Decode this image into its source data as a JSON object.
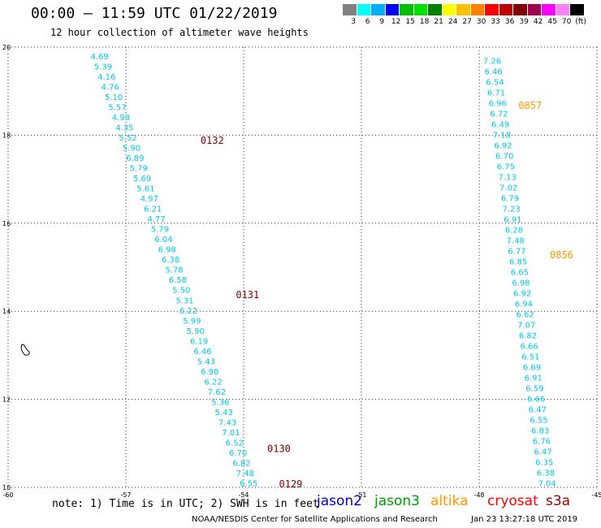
{
  "title": "00:00 – 11:59 UTC 01/22/2019",
  "subtitle": "12 hour collection of altimeter wave heights",
  "colorbar": {
    "colors": [
      "#808080",
      "#00ffff",
      "#00b0ff",
      "#0000ff",
      "#00c000",
      "#00e000",
      "#008000",
      "#ffff00",
      "#ffc000",
      "#ff8000",
      "#ff0000",
      "#c00000",
      "#800000",
      "#a00050",
      "#ff00ff",
      "#ff80ff",
      "#000000"
    ],
    "labels": [
      "3",
      "6",
      "9",
      "12",
      "15",
      "18",
      "21",
      "24",
      "27",
      "30",
      "33",
      "36",
      "39",
      "42",
      "45",
      "70",
      "(ft)"
    ]
  },
  "note": "note:  1) Time is in UTC;  2) SWH is in feet",
  "legend": [
    {
      "label": "jason2",
      "color": "#0000cc"
    },
    {
      "label": "jason3",
      "color": "#009900"
    },
    {
      "label": "altika",
      "color": "#ff9900"
    },
    {
      "label": "cryosat",
      "color": "#ff0000"
    },
    {
      "label": "s3a",
      "color": "#990000"
    }
  ],
  "credit": "NOAA/NESDIS Center for Satellite Applications and Research",
  "timestamp": "Jan 23 13:27:18 UTC 2019",
  "chart_data": {
    "type": "scatter",
    "x_ticks": [
      "-60",
      "-57",
      "-54",
      "-51",
      "-48",
      "-45"
    ],
    "y_ticks": [
      "10",
      "12",
      "14",
      "16",
      "18",
      "20"
    ],
    "xlim": [
      -60,
      -45
    ],
    "ylim": [
      10,
      20
    ],
    "grid": true,
    "tracks": [
      {
        "satellite": "jason3",
        "color": "#00c8e8",
        "lon_start": -57.9,
        "lat_start": 19.8,
        "lon_end": -54.1,
        "lat_end": 10.1,
        "values": [
          "4.69",
          "5.39",
          "4.16",
          "4.76",
          "5.10",
          "5.57",
          "4.98",
          "4.35",
          "5.52",
          "5.90",
          "6.89",
          "5.79",
          "5.69",
          "5.61",
          "4.97",
          "6.21",
          "4.77",
          "5.79",
          "6.04",
          "6.98",
          "6.38",
          "5.78",
          "6.58",
          "5.50",
          "5.31",
          "6.22",
          "5.99",
          "5.90",
          "6.19",
          "6.46",
          "5.43",
          "6.98",
          "6.22",
          "7.62",
          "5.36",
          "5.43",
          "7.43",
          "7.01",
          "6.52",
          "6.70",
          "6.82",
          "7.48",
          "6.55"
        ]
      },
      {
        "satellite": "jason3",
        "color": "#00c8e8",
        "lon_start": -47.9,
        "lat_start": 19.7,
        "lon_end": -46.5,
        "lat_end": 10.1,
        "values": [
          "7.26",
          "6.46",
          "6.54",
          "6.71",
          "6.96",
          "6.72",
          "6.49",
          "7.18",
          "6.92",
          "6.70",
          "6.75",
          "7.13",
          "7.02",
          "6.79",
          "7.23",
          "6.91",
          "6.28",
          "7.48",
          "6.77",
          "6.85",
          "6.65",
          "6.98",
          "6.92",
          "6.94",
          "6.62",
          "7.07",
          "6.82",
          "6.66",
          "6.51",
          "6.69",
          "6.91",
          "6.59",
          "6.66",
          "6.47",
          "6.55",
          "6.83",
          "6.76",
          "6.47",
          "6.35",
          "6.38",
          "7.04"
        ]
      }
    ],
    "time_labels": [
      {
        "text": "0132",
        "color": "#800000",
        "lon": -55.1,
        "lat": 17.8
      },
      {
        "text": "0131",
        "color": "#800000",
        "lon": -54.2,
        "lat": 14.3
      },
      {
        "text": "0130",
        "color": "#800000",
        "lon": -53.4,
        "lat": 10.8
      },
      {
        "text": "0129",
        "color": "#800000",
        "lon": -53.1,
        "lat": 10.0
      },
      {
        "text": "0857",
        "color": "#ff9900",
        "lon": -47.0,
        "lat": 18.6
      },
      {
        "text": "0856",
        "color": "#ff9900",
        "lon": -46.2,
        "lat": 15.2
      }
    ]
  }
}
